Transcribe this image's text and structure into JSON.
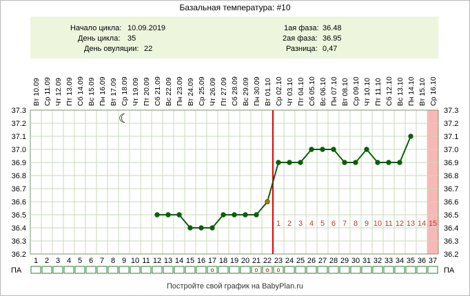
{
  "chart_title": "Базальная температура: #10",
  "info": {
    "cycle_start_label": "Начало цикла:",
    "cycle_start_value": "10.09.2019",
    "cycle_day_label": "День цикла:",
    "cycle_day_value": "35",
    "ovulation_day_label": "День овуляции:",
    "ovulation_day_value": "22",
    "phase1_label": "1ая фаза:",
    "phase1_value": "36.48",
    "phase2_label": "2ая фаза:",
    "phase2_value": "36.95",
    "difference_label": "Разница:",
    "difference_value": "0,47"
  },
  "footer_text": "Постройте свой график на BabyPlan.ru",
  "pa_label": "ПА",
  "moon_icon": "crescent-moon-icon",
  "colors": {
    "line": "#0b5e0b",
    "ovulation_line": "#e00000",
    "post_ovulation_numbers": "#c0392b",
    "forecast_band": "#f8b8b8",
    "info_background": "#eef5dd",
    "grid": "#c8d8b8",
    "pa_cells": "#2e7d32"
  },
  "chart_data": {
    "type": "line",
    "title": "Базальная температура: #10",
    "ylim": [
      36.2,
      37.3
    ],
    "y_ticks": [
      "37.3",
      "37.2",
      "37.1",
      "37.0",
      "36.9",
      "36.8",
      "36.7",
      "36.6",
      "36.5",
      "36.4",
      "36.3",
      "36.2"
    ],
    "grid": true,
    "cycle_days": [
      "1",
      "2",
      "3",
      "4",
      "5",
      "6",
      "7",
      "8",
      "9",
      "10",
      "11",
      "12",
      "13",
      "14",
      "15",
      "16",
      "17",
      "18",
      "19",
      "20",
      "21",
      "22",
      "23",
      "24",
      "25",
      "26",
      "27",
      "28",
      "29",
      "30",
      "31",
      "32",
      "33",
      "34",
      "35",
      "36",
      "37"
    ],
    "dates": [
      "Вт 10.09",
      "Ср 11.09",
      "Чт 12.09",
      "Пт 13.09",
      "Сб 14.09",
      "Вс 15.09",
      "Пн 16.09",
      "Вт 17.09",
      "Ср 18.09",
      "Чт 19.09",
      "Пт 20.09",
      "Сб 21.09",
      "Вс 22.09",
      "Пн 23.09",
      "Вт 24.09",
      "Ср 25.09",
      "Чт 26.09",
      "Пт 27.09",
      "Сб 28.09",
      "Вс 29.09",
      "Пн 30.09",
      "Вт 01.10",
      "Ср 02.10",
      "Чт 03.10",
      "Пт 04.10",
      "Сб 05.10",
      "Вс 06.10",
      "Пн 07.10",
      "Вт 08.10",
      "Ср 09.10",
      "Чт 10.10",
      "Пт 11.10",
      "Сб 12.10",
      "Вс 13.10",
      "Пн 14.10",
      "Вт 15.10",
      "Ср 16.10"
    ],
    "series": [
      {
        "x": [
          12,
          13,
          14,
          15,
          16,
          17,
          18,
          19,
          20,
          21,
          22,
          23,
          24,
          25,
          26,
          27,
          28,
          29,
          30,
          31,
          32,
          33,
          34,
          35
        ],
        "y": [
          36.5,
          36.5,
          36.5,
          36.4,
          36.4,
          36.4,
          36.5,
          36.5,
          36.5,
          36.5,
          36.6,
          36.9,
          36.9,
          36.9,
          37.0,
          37.0,
          37.0,
          36.9,
          36.9,
          37.0,
          36.9,
          36.9,
          36.9,
          37.1
        ]
      }
    ],
    "ovulation_day": 22,
    "post_ovulation_day_numbers": [
      {
        "day": 23,
        "label": "1"
      },
      {
        "day": 24,
        "label": "2"
      },
      {
        "day": 25,
        "label": "3"
      },
      {
        "day": 26,
        "label": "4"
      },
      {
        "day": 27,
        "label": "5"
      },
      {
        "day": 28,
        "label": "6"
      },
      {
        "day": 29,
        "label": "7"
      },
      {
        "day": 30,
        "label": "8"
      },
      {
        "day": 31,
        "label": "9"
      },
      {
        "day": 32,
        "label": "10"
      },
      {
        "day": 33,
        "label": "11"
      },
      {
        "day": 34,
        "label": "12"
      },
      {
        "day": 35,
        "label": "13"
      },
      {
        "day": 36,
        "label": "14"
      },
      {
        "day": 37,
        "label": "15"
      }
    ],
    "forecast_day": 37,
    "moon_day": 9,
    "pa_marks": [
      {
        "day": 17,
        "mark": "o"
      },
      {
        "day": 21,
        "mark": "o"
      },
      {
        "day": 22,
        "mark": "o"
      },
      {
        "day": 23,
        "mark": "o"
      }
    ]
  }
}
